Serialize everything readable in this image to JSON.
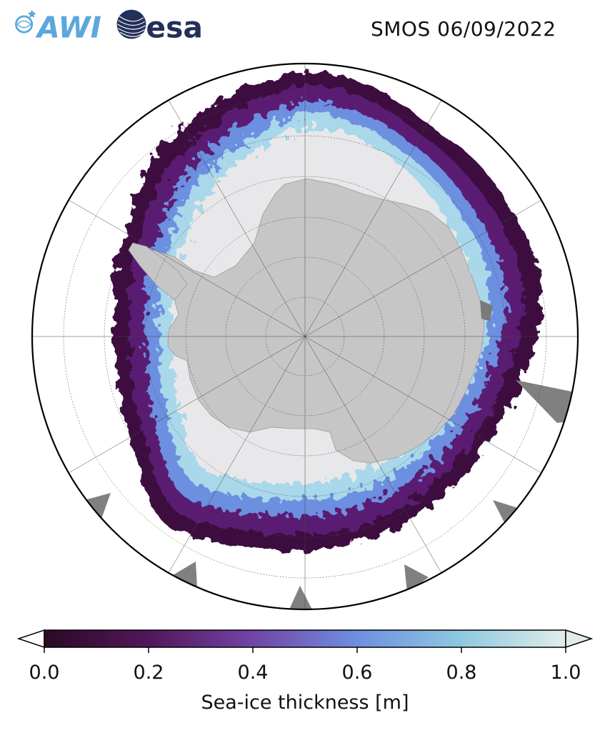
{
  "header": {
    "logo_awi": "AWI",
    "logo_esa": "esa",
    "title": "SMOS 06/09/2022"
  },
  "map": {
    "projection": "south-polar-stereographic",
    "land_color": "#c6c6c6",
    "ocean_color": "#ffffff",
    "high_thickness_color": "#e8e8ea",
    "missing_data_color": "#808080",
    "gridlines": true
  },
  "colorbar": {
    "colormap": "dark-purple-to-blue-to-light",
    "stops": [
      "#2b0a26",
      "#52165a",
      "#7244a6",
      "#6e8fe0",
      "#8ec9e0",
      "#e2ecea"
    ],
    "ticks": [
      "0.0",
      "0.2",
      "0.4",
      "0.6",
      "0.8",
      "1.0"
    ],
    "tick_values": [
      0.0,
      0.2,
      0.4,
      0.6,
      0.8,
      1.0
    ],
    "range": [
      0.0,
      1.0
    ],
    "extend": "both",
    "label": "Sea-ice thickness [m]"
  }
}
